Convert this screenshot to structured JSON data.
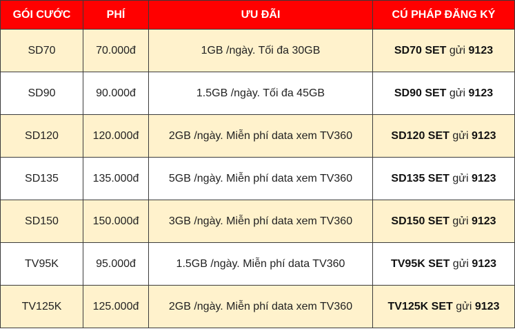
{
  "colors": {
    "header_bg": "#ff0000",
    "alt_row_bg": "#fff2cc",
    "border": "#3a3a3a"
  },
  "table": {
    "headers": [
      "GÓI CƯỚC",
      "PHÍ",
      "ƯU ĐÃI",
      "CÚ PHÁP ĐĂNG KÝ"
    ],
    "rows": [
      {
        "package": "SD70",
        "fee": "70.000đ",
        "benefit": "1GB /ngày. Tối đa 30GB",
        "code": "SD70 SET",
        "send": "gửi",
        "number": "9123"
      },
      {
        "package": "SD90",
        "fee": "90.000đ",
        "benefit": "1.5GB /ngày. Tối đa 45GB",
        "code": "SD90 SET",
        "send": "gửi",
        "number": "9123"
      },
      {
        "package": "SD120",
        "fee": "120.000đ",
        "benefit": "2GB /ngày. Miễn phí data xem TV360",
        "code": "SD120 SET",
        "send": "gửi",
        "number": "9123"
      },
      {
        "package": "SD135",
        "fee": "135.000đ",
        "benefit": "5GB /ngày. Miễn phí data xem TV360",
        "code": "SD135 SET",
        "send": "gửi",
        "number": "9123"
      },
      {
        "package": "SD150",
        "fee": "150.000đ",
        "benefit": "3GB /ngày. Miễn phí data xem TV360",
        "code": "SD150 SET",
        "send": "gửi",
        "number": "9123"
      },
      {
        "package": "TV95K",
        "fee": "95.000đ",
        "benefit": "1.5GB /ngày. Miễn phí data TV360",
        "code": "TV95K SET",
        "send": "gửi",
        "number": "9123"
      },
      {
        "package": "TV125K",
        "fee": "125.000đ",
        "benefit": "2GB /ngày. Miễn phí data xem TV360",
        "code": "TV125K SET",
        "send": "gửi",
        "number": "9123"
      }
    ]
  }
}
